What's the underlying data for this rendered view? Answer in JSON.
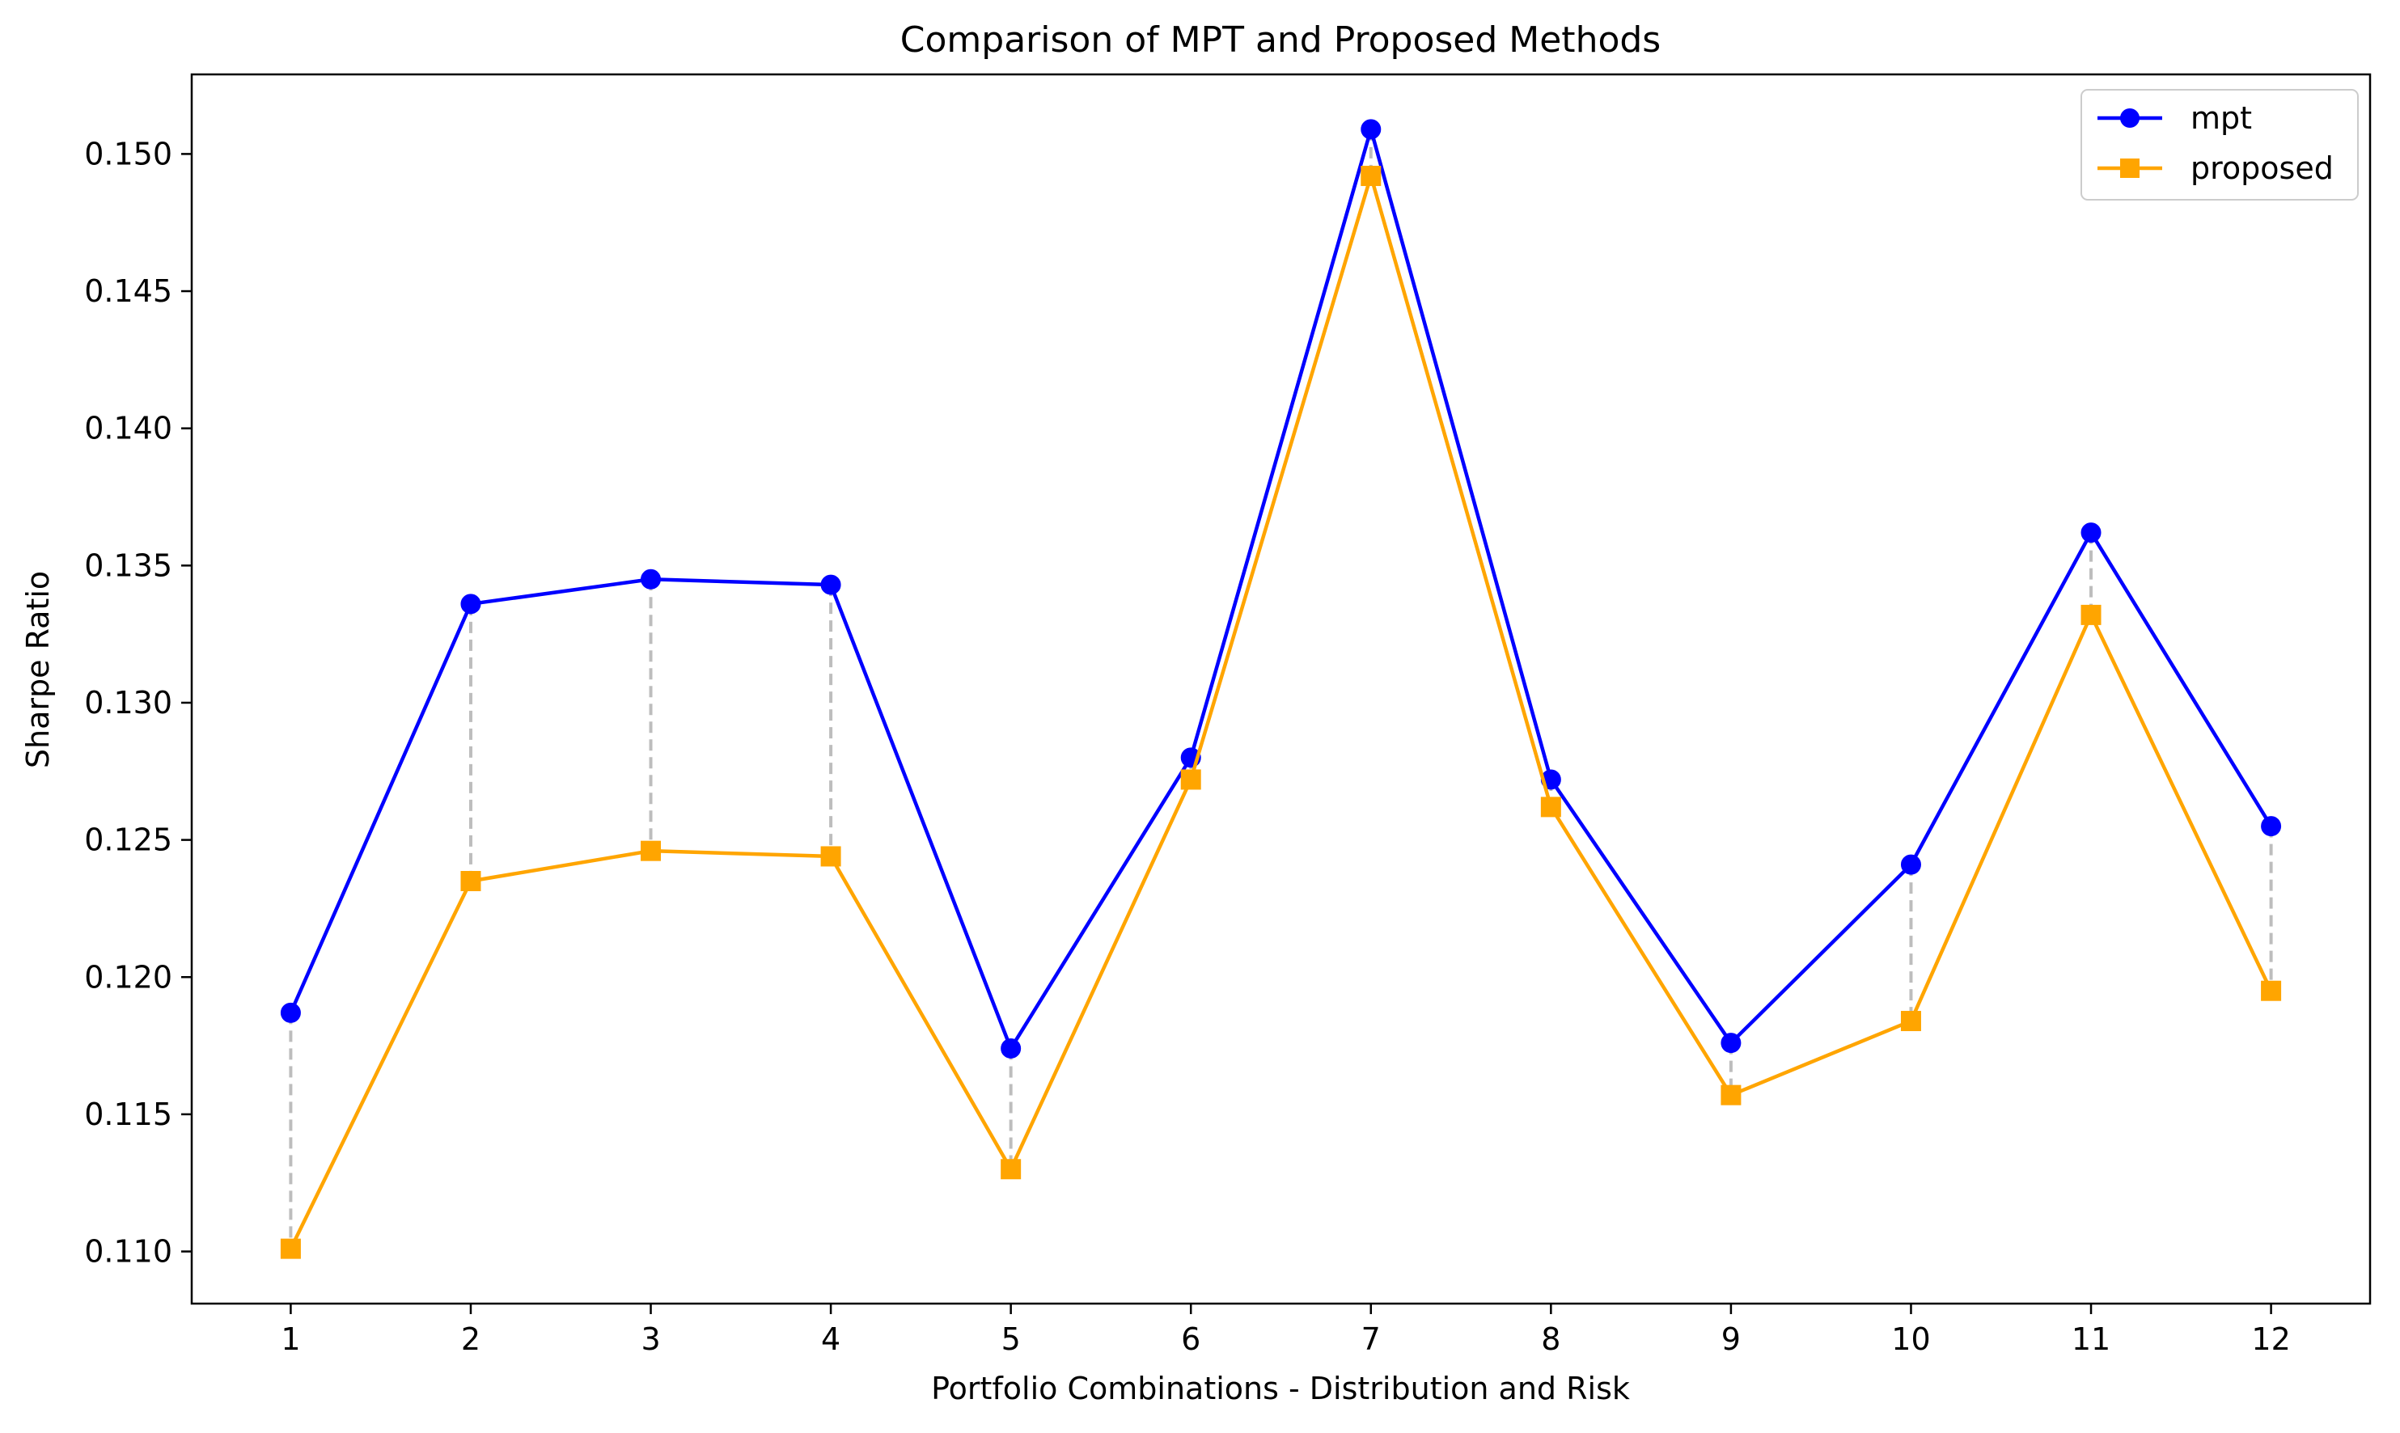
{
  "chart_data": {
    "type": "line",
    "title": "Comparison of MPT and Proposed Methods",
    "xlabel": "Portfolio Combinations - Distribution and Risk",
    "ylabel": "Sharpe Ratio",
    "categories": [
      "1",
      "2",
      "3",
      "4",
      "5",
      "6",
      "7",
      "8",
      "9",
      "10",
      "11",
      "12"
    ],
    "x": [
      1,
      2,
      3,
      4,
      5,
      6,
      7,
      8,
      9,
      10,
      11,
      12
    ],
    "xlim": [
      0.45,
      12.55
    ],
    "ylim": [
      0.1081,
      0.1529
    ],
    "yticks": [
      0.11,
      0.115,
      0.12,
      0.125,
      0.13,
      0.135,
      0.14,
      0.145,
      0.15
    ],
    "ytick_labels": [
      "0.110",
      "0.115",
      "0.120",
      "0.125",
      "0.130",
      "0.135",
      "0.140",
      "0.145",
      "0.150"
    ],
    "grid": false,
    "legend_position": "top-right",
    "series": [
      {
        "name": "mpt",
        "color": "#0000ff",
        "marker": "circle",
        "values": [
          0.1187,
          0.1336,
          0.1345,
          0.1343,
          0.1174,
          0.128,
          0.1509,
          0.1272,
          0.1176,
          0.1241,
          0.1362,
          0.1255
        ]
      },
      {
        "name": "proposed",
        "color": "#ffa500",
        "marker": "square",
        "values": [
          0.1101,
          0.1235,
          0.1246,
          0.1244,
          0.113,
          0.1272,
          0.1492,
          0.1262,
          0.1157,
          0.1184,
          0.1332,
          0.1195
        ]
      }
    ],
    "difference_connector_color": "#bdbdbd"
  }
}
